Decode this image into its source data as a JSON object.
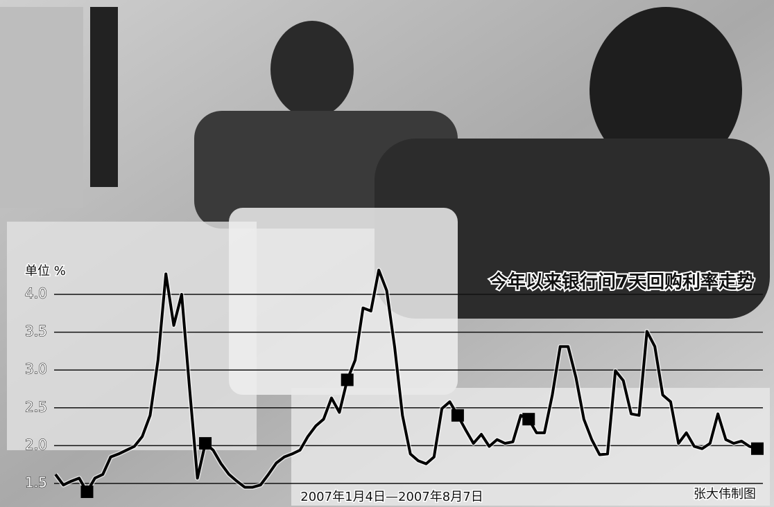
{
  "chart_data": {
    "type": "line",
    "title": "今年以来银行间7天回购利率走势",
    "y_unit_label": "单位 %",
    "x_label": "2007年1月4日—2007年8月7日",
    "credit": "张大伟制图",
    "values": [
      1.62,
      1.48,
      1.53,
      1.57,
      1.39,
      1.57,
      1.62,
      1.85,
      1.89,
      1.94,
      1.99,
      2.12,
      2.4,
      3.13,
      4.27,
      3.59,
      4.0,
      2.76,
      1.57,
      2.03,
      1.94,
      1.76,
      1.62,
      1.53,
      1.45,
      1.45,
      1.48,
      1.62,
      1.77,
      1.85,
      1.89,
      1.94,
      2.12,
      2.26,
      2.35,
      2.63,
      2.44,
      2.87,
      3.13,
      3.82,
      3.78,
      4.32,
      4.05,
      3.31,
      2.4,
      1.89,
      1.8,
      1.76,
      1.85,
      2.49,
      2.58,
      2.4,
      2.21,
      2.03,
      2.15,
      1.99,
      2.08,
      2.03,
      2.05,
      2.4,
      2.35,
      2.17,
      2.17,
      2.67,
      3.31,
      3.31,
      2.9,
      2.35,
      2.08,
      1.88,
      1.89,
      2.99,
      2.86,
      2.42,
      2.4,
      3.51,
      3.31,
      2.67,
      2.58,
      2.03,
      2.17,
      1.99,
      1.96,
      2.03,
      2.42,
      2.08,
      2.03,
      2.06,
      1.99,
      1.96
    ],
    "marker_values": [
      null,
      null,
      null,
      null,
      1.39,
      null,
      null,
      null,
      null,
      null,
      null,
      null,
      null,
      null,
      null,
      null,
      null,
      null,
      null,
      2.03,
      null,
      null,
      null,
      null,
      null,
      null,
      null,
      null,
      null,
      null,
      null,
      null,
      null,
      null,
      null,
      null,
      null,
      2.87,
      null,
      null,
      null,
      null,
      null,
      null,
      null,
      null,
      null,
      null,
      null,
      null,
      null,
      2.4,
      null,
      null,
      null,
      null,
      null,
      null,
      null,
      null,
      2.35,
      null,
      null,
      null,
      null,
      null,
      null,
      null,
      null,
      null,
      null,
      null,
      null,
      null,
      null,
      null,
      null,
      null,
      null,
      null,
      null,
      null,
      null,
      null,
      null,
      null,
      null,
      null,
      null,
      1.96
    ],
    "color": "#000000",
    "ylim": [
      1.5,
      4.0
    ],
    "yticks": [
      1.5,
      {
        "value": 2,
        "label": "2.0"
      },
      2.5,
      {
        "value": 3,
        "label": "3.0"
      },
      3.5,
      {
        "value": 4,
        "label": "4.0"
      }
    ],
    "grid": true
  }
}
